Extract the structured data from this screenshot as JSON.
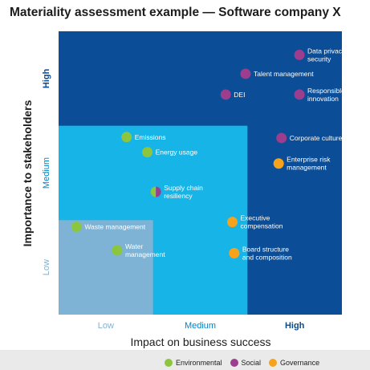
{
  "title": "Materiality assessment example — Software company X",
  "chart_data": {
    "type": "scatter",
    "title": "Materiality assessment example — Software company X",
    "xlabel": "Impact on business success",
    "ylabel": "Importance to stakeholders",
    "xlim": [
      0,
      3
    ],
    "ylim": [
      0,
      3
    ],
    "x_ticks": [
      "Low",
      "Medium",
      "High"
    ],
    "y_ticks": [
      "Low",
      "Medium",
      "High"
    ],
    "x_tick_colors": [
      "#7fb3d5",
      "#0083c5",
      "#0a4a8c"
    ],
    "y_tick_colors": [
      "#7fb3d5",
      "#0083c5",
      "#0a4a8c"
    ],
    "regions": [
      {
        "name": "high",
        "color": "#0b4d96"
      },
      {
        "name": "medium",
        "color": "#17b4e8"
      },
      {
        "name": "low",
        "color": "#7fb3d5"
      }
    ],
    "categories": [
      {
        "name": "Environmental",
        "color": "#8cc63f"
      },
      {
        "name": "Social",
        "color": "#9c3d8e"
      },
      {
        "name": "Governance",
        "color": "#f7a21b"
      }
    ],
    "points": [
      {
        "label": "Data privacy/ security",
        "lines": [
          "Data privacy/",
          "security"
        ],
        "x": 2.55,
        "y": 2.75,
        "category": "Social"
      },
      {
        "label": "Talent management",
        "lines": [
          "Talent management"
        ],
        "x": 1.98,
        "y": 2.55,
        "category": "Social"
      },
      {
        "label": "DEI",
        "lines": [
          "DEI"
        ],
        "x": 1.77,
        "y": 2.33,
        "category": "Social"
      },
      {
        "label": "Responsible innovation",
        "lines": [
          "Responsible",
          "innovation"
        ],
        "x": 2.55,
        "y": 2.33,
        "category": "Social"
      },
      {
        "label": "Corporate culture",
        "lines": [
          "Corporate culture"
        ],
        "x": 2.36,
        "y": 1.87,
        "category": "Social"
      },
      {
        "label": "Emissions",
        "lines": [
          "Emissions"
        ],
        "x": 0.72,
        "y": 1.88,
        "category": "Environmental"
      },
      {
        "label": "Energy usage",
        "lines": [
          "Energy usage"
        ],
        "x": 0.94,
        "y": 1.72,
        "category": "Environmental"
      },
      {
        "label": "Enterprise risk management",
        "lines": [
          "Enterprise risk",
          "management"
        ],
        "x": 2.33,
        "y": 1.6,
        "category": "Governance"
      },
      {
        "label": "Supply chain resiliency",
        "lines": [
          "Supply chain",
          "resiliency"
        ],
        "x": 1.03,
        "y": 1.3,
        "category": "Mixed"
      },
      {
        "label": "Executive compensation",
        "lines": [
          "Executive",
          "compensation"
        ],
        "x": 1.84,
        "y": 0.98,
        "category": "Governance"
      },
      {
        "label": "Board structure and composition",
        "lines": [
          "Board structure",
          "and composition"
        ],
        "x": 1.86,
        "y": 0.65,
        "category": "Governance"
      },
      {
        "label": "Waste management",
        "lines": [
          "Waste management"
        ],
        "x": 0.19,
        "y": 0.93,
        "category": "Environmental"
      },
      {
        "label": "Water management",
        "lines": [
          "Water",
          "management"
        ],
        "x": 0.62,
        "y": 0.68,
        "category": "Environmental"
      }
    ]
  },
  "legend": {
    "items": [
      {
        "label": "Environmental",
        "color": "#8cc63f"
      },
      {
        "label": "Social",
        "color": "#9c3d8e"
      },
      {
        "label": "Governance",
        "color": "#f7a21b"
      }
    ]
  }
}
